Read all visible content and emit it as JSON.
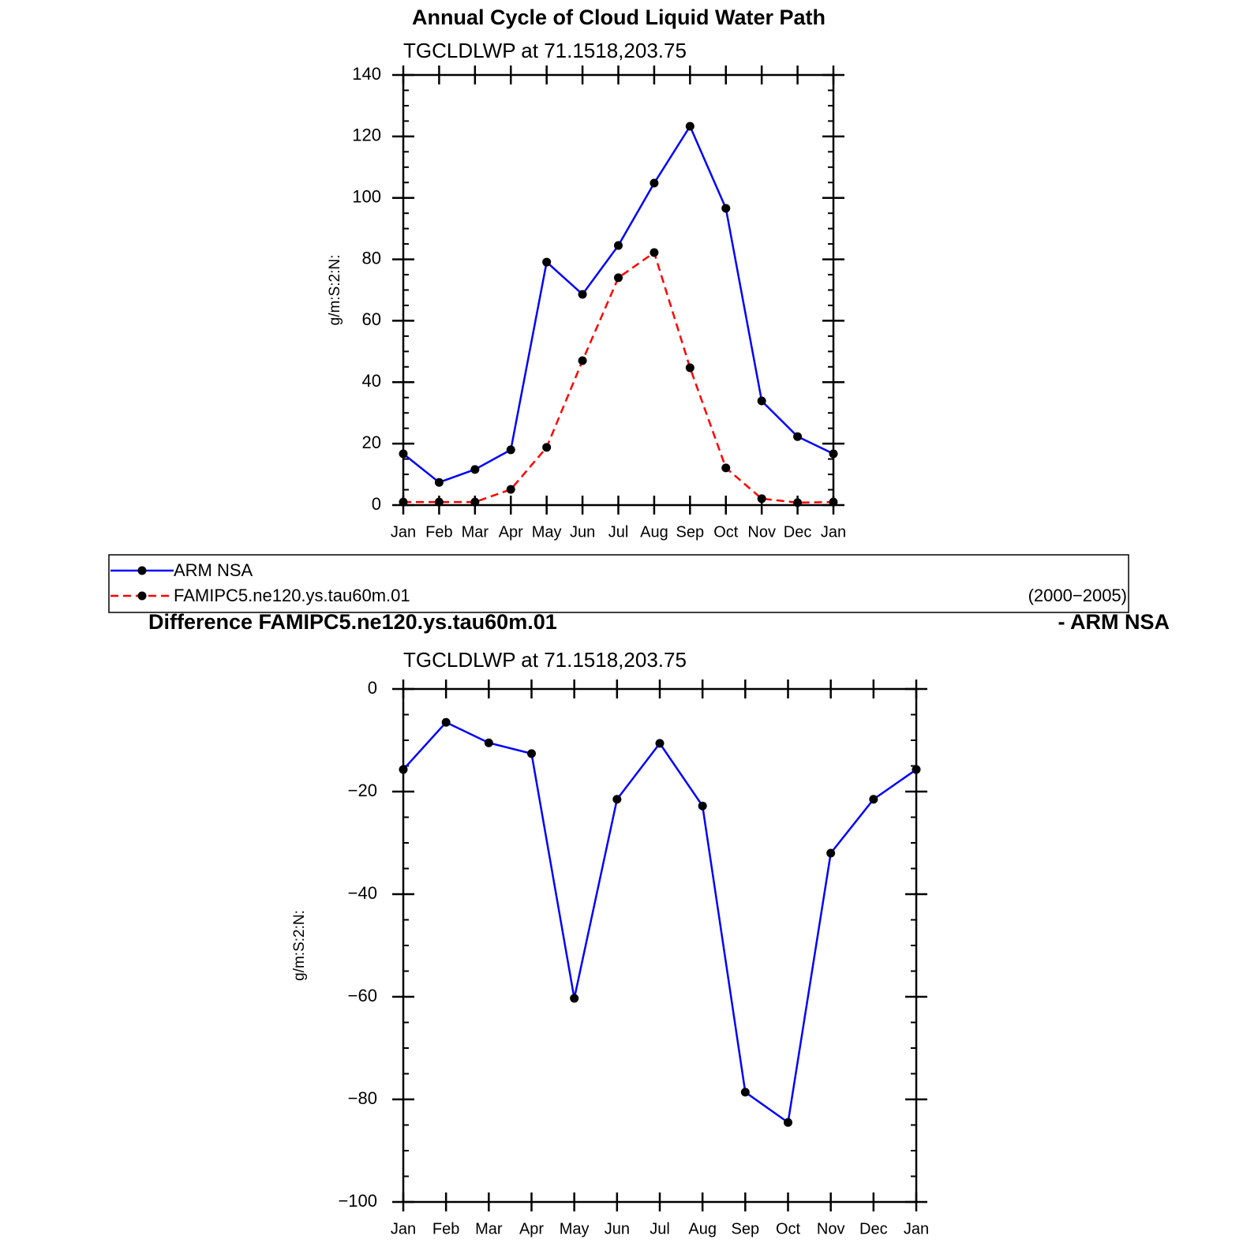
{
  "chart_data": [
    {
      "type": "line",
      "title": "Annual Cycle of Cloud Liquid Water Path",
      "subtitle": "TGCLDLWP  at  71.1518,203.75",
      "ylabel": "g/m:S:2:N:",
      "categories": [
        "Jan",
        "Feb",
        "Mar",
        "Apr",
        "May",
        "Jun",
        "Jul",
        "Aug",
        "Sep",
        "Oct",
        "Nov",
        "Dec",
        "Jan"
      ],
      "series": [
        {
          "name": "ARM  NSA",
          "color": "#0000ff",
          "dash": false,
          "values": [
            16.7,
            7.4,
            11.6,
            18.0,
            79.1,
            68.6,
            84.5,
            104.8,
            123.3,
            96.6,
            33.9,
            22.3,
            16.7
          ]
        },
        {
          "name": "FAMIPC5.ne120.ys.tau60m.01",
          "color": "#ff0000",
          "dash": true,
          "values": [
            1.0,
            1.0,
            1.0,
            5.1,
            18.8,
            47.0,
            74.0,
            82.2,
            44.7,
            12.1,
            2.1,
            0.8,
            1.0
          ]
        }
      ],
      "ylim": [
        0,
        140
      ],
      "yticks": [
        0,
        20,
        40,
        60,
        80,
        100,
        120,
        140
      ],
      "yminor": 5,
      "legend": "bottom",
      "legend_note": "(2000−2005)"
    },
    {
      "type": "line",
      "title": "Difference FAMIPC5.ne120.ys.tau60m.01",
      "title_suffix": "- ARM NSA",
      "subtitle": "TGCLDLWP  at  71.1518,203.75",
      "ylabel": "g/m:S:2:N:",
      "categories": [
        "Jan",
        "Feb",
        "Mar",
        "Apr",
        "May",
        "Jun",
        "Jul",
        "Aug",
        "Sep",
        "Oct",
        "Nov",
        "Dec",
        "Jan"
      ],
      "series": [
        {
          "color": "#0000ff",
          "dash": false,
          "values": [
            -15.7,
            -6.5,
            -10.5,
            -12.6,
            -60.3,
            -21.5,
            -10.6,
            -22.8,
            -78.6,
            -84.5,
            -32.0,
            -21.5,
            -15.7
          ]
        }
      ],
      "ylim": [
        -100,
        0
      ],
      "yticks": [
        {
          "value": -100,
          "label": "−100"
        },
        {
          "value": -80,
          "label": "−80"
        },
        {
          "value": -60,
          "label": "−60"
        },
        {
          "value": -40,
          "label": "−40"
        },
        {
          "value": -20,
          "label": "−20"
        },
        0
      ],
      "yminor": 5
    }
  ]
}
